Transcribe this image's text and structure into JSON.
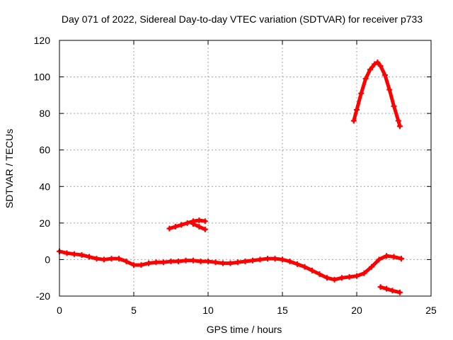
{
  "chart_data": {
    "type": "scatter",
    "title": "Day 071 of 2022, Sidereal Day-to-day VTEC variation (SDTVAR) for receiver p733",
    "xlabel": "GPS time / hours",
    "ylabel": "SDTVAR / TECUs",
    "xlim": [
      0,
      25
    ],
    "ylim": [
      -20,
      120
    ],
    "xticks": [
      0,
      5,
      10,
      15,
      20,
      25
    ],
    "yticks": [
      -20,
      0,
      20,
      40,
      60,
      80,
      100,
      120
    ],
    "grid": true,
    "legend": "none",
    "marker": "plus",
    "series": [
      {
        "name": "baseline",
        "color": "#ff0000",
        "x": [
          0.0,
          0.5,
          1.0,
          1.5,
          2.0,
          2.5,
          3.0,
          3.5,
          4.0,
          4.5,
          5.0,
          5.5,
          6.0,
          6.5,
          7.0,
          7.5,
          8.0,
          8.5,
          9.0,
          9.5,
          10.0,
          10.5,
          11.0,
          11.5,
          12.0,
          12.5,
          13.0,
          13.5,
          14.0,
          14.5,
          15.0,
          15.5,
          16.0,
          16.5,
          17.0,
          17.5,
          18.0,
          18.5,
          19.0,
          19.5,
          20.0,
          20.5,
          21.0,
          21.5,
          22.0,
          22.5,
          23.0
        ],
        "y": [
          4.5,
          3.5,
          3.0,
          2.5,
          1.5,
          0.5,
          0.0,
          0.5,
          0.5,
          -1.0,
          -3.0,
          -3.0,
          -2.0,
          -1.5,
          -1.5,
          -1.0,
          -1.0,
          -0.5,
          -0.5,
          -1.0,
          -1.0,
          -1.5,
          -2.0,
          -2.0,
          -1.5,
          -1.0,
          -0.5,
          0.0,
          0.5,
          0.5,
          0.0,
          -1.0,
          -2.5,
          -4.0,
          -6.0,
          -8.0,
          -10.0,
          -11.0,
          -10.0,
          -9.5,
          -9.0,
          -7.5,
          -4.0,
          0.0,
          2.0,
          1.5,
          0.5
        ]
      },
      {
        "name": "arc-20-upper",
        "color": "#ff0000",
        "x": [
          7.4,
          7.8,
          8.2,
          8.6,
          9.0,
          9.4,
          9.8
        ],
        "y": [
          17.0,
          18.0,
          19.0,
          20.0,
          21.0,
          21.5,
          21.0
        ]
      },
      {
        "name": "arc-20-lower",
        "color": "#ff0000",
        "x": [
          9.0,
          9.4,
          9.8
        ],
        "y": [
          19.5,
          18.0,
          16.5
        ]
      },
      {
        "name": "peak",
        "color": "#ff0000",
        "x": [
          19.8,
          20.0,
          20.3,
          20.6,
          20.9,
          21.2,
          21.4,
          21.6,
          21.9,
          22.2,
          22.5,
          22.8,
          22.9
        ],
        "y": [
          76.0,
          82.0,
          91.0,
          99.0,
          104.0,
          107.0,
          108.0,
          106.0,
          101.0,
          93.0,
          84.0,
          76.0,
          73.0
        ]
      },
      {
        "name": "tail",
        "color": "#ff0000",
        "x": [
          21.6,
          22.0,
          22.4,
          22.9
        ],
        "y": [
          -15.0,
          -16.0,
          -17.0,
          -18.0
        ]
      }
    ]
  }
}
